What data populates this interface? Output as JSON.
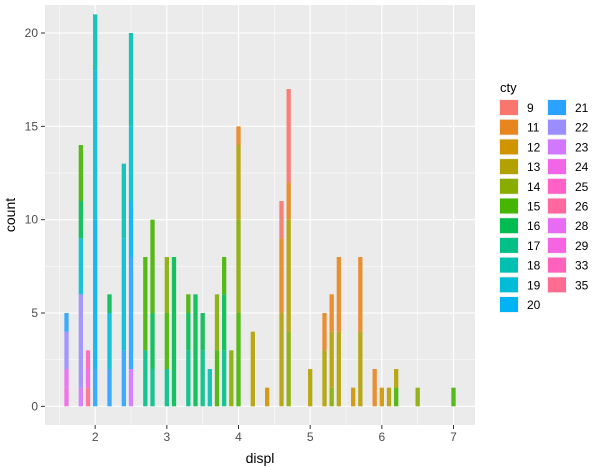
{
  "chart_data": {
    "type": "bar",
    "subtype": "stacked-histogram",
    "xlabel": "displ",
    "ylabel": "count",
    "xlim": [
      1.3,
      7.3
    ],
    "ylim": [
      -1,
      21.5
    ],
    "x_ticks": [
      2,
      3,
      4,
      5,
      6,
      7
    ],
    "y_ticks": [
      0,
      5,
      10,
      15,
      20
    ],
    "bin_width": 0.06,
    "grid": true,
    "legend_position": "right",
    "legend": {
      "title": "cty",
      "entries": [
        {
          "label": "9",
          "color": "#F8766D"
        },
        {
          "label": "11",
          "color": "#E7851E"
        },
        {
          "label": "12",
          "color": "#D09400"
        },
        {
          "label": "13",
          "color": "#B2A100"
        },
        {
          "label": "14",
          "color": "#89AC00"
        },
        {
          "label": "15",
          "color": "#45B500"
        },
        {
          "label": "16",
          "color": "#00BC51"
        },
        {
          "label": "17",
          "color": "#00C087"
        },
        {
          "label": "18",
          "color": "#00C0B2"
        },
        {
          "label": "19",
          "color": "#00BCD6"
        },
        {
          "label": "20",
          "color": "#00B3F2"
        },
        {
          "label": "21",
          "color": "#29A3FF"
        },
        {
          "label": "22",
          "color": "#9C8DFF"
        },
        {
          "label": "23",
          "color": "#D277FF"
        },
        {
          "label": "24",
          "color": "#F166E8"
        },
        {
          "label": "25",
          "color": "#FF61C7"
        },
        {
          "label": "26",
          "color": "#FF689E"
        },
        {
          "label": "28",
          "color": "#E76BF3"
        },
        {
          "label": "29",
          "color": "#F564E3"
        },
        {
          "label": "33",
          "color": "#FF62BC"
        },
        {
          "label": "35",
          "color": "#FF6C91"
        }
      ]
    },
    "bars": [
      {
        "x": 1.6,
        "stack": [
          [
            "24",
            1
          ],
          [
            "28",
            1
          ],
          [
            "22",
            2
          ],
          [
            "21",
            1
          ]
        ]
      },
      {
        "x": 1.8,
        "stack": [
          [
            "23",
            1
          ],
          [
            "22",
            5
          ],
          [
            "19",
            3
          ],
          [
            "16",
            2
          ],
          [
            "15",
            3
          ]
        ]
      },
      {
        "x": 1.9,
        "stack": [
          [
            "35",
            1
          ],
          [
            "29",
            1
          ],
          [
            "33",
            1
          ]
        ]
      },
      {
        "x": 2.0,
        "stack": [
          [
            "21",
            2
          ],
          [
            "20",
            8
          ],
          [
            "19",
            8
          ],
          [
            "18",
            3
          ]
        ]
      },
      {
        "x": 2.2,
        "stack": [
          [
            "21",
            2
          ],
          [
            "19",
            3
          ],
          [
            "16",
            1
          ]
        ]
      },
      {
        "x": 2.4,
        "stack": [
          [
            "21",
            3
          ],
          [
            "19",
            6
          ],
          [
            "18",
            4
          ]
        ]
      },
      {
        "x": 2.5,
        "stack": [
          [
            "23",
            2
          ],
          [
            "21",
            6
          ],
          [
            "20",
            3
          ],
          [
            "19",
            4
          ],
          [
            "18",
            5
          ]
        ]
      },
      {
        "x": 2.7,
        "stack": [
          [
            "17",
            3
          ],
          [
            "15",
            5
          ]
        ]
      },
      {
        "x": 2.8,
        "stack": [
          [
            "17",
            2
          ],
          [
            "16",
            3
          ],
          [
            "15",
            5
          ]
        ]
      },
      {
        "x": 3.0,
        "stack": [
          [
            "17",
            2
          ],
          [
            "15",
            3
          ],
          [
            "14",
            3
          ]
        ]
      },
      {
        "x": 3.1,
        "stack": [
          [
            "16",
            8
          ]
        ]
      },
      {
        "x": 3.3,
        "stack": [
          [
            "17",
            3
          ],
          [
            "16",
            2
          ],
          [
            "15",
            1
          ]
        ]
      },
      {
        "x": 3.4,
        "stack": [
          [
            "16",
            6
          ]
        ]
      },
      {
        "x": 3.5,
        "stack": [
          [
            "17",
            3
          ],
          [
            "16",
            2
          ]
        ]
      },
      {
        "x": 3.6,
        "stack": [
          [
            "18",
            2
          ]
        ]
      },
      {
        "x": 3.7,
        "stack": [
          [
            "15",
            3
          ],
          [
            "14",
            3
          ]
        ]
      },
      {
        "x": 3.8,
        "stack": [
          [
            "17",
            3
          ],
          [
            "16",
            3
          ],
          [
            "15",
            2
          ]
        ]
      },
      {
        "x": 3.9,
        "stack": [
          [
            "14",
            3
          ]
        ]
      },
      {
        "x": 4.0,
        "stack": [
          [
            "15",
            5
          ],
          [
            "14",
            5
          ],
          [
            "13",
            4
          ],
          [
            "11",
            1
          ]
        ]
      },
      {
        "x": 4.2,
        "stack": [
          [
            "13",
            4
          ]
        ]
      },
      {
        "x": 4.4,
        "stack": [
          [
            "12",
            1
          ]
        ]
      },
      {
        "x": 4.6,
        "stack": [
          [
            "13",
            5
          ],
          [
            "11",
            4
          ],
          [
            "9",
            2
          ]
        ]
      },
      {
        "x": 4.7,
        "stack": [
          [
            "14",
            4
          ],
          [
            "13",
            6
          ],
          [
            "11",
            2
          ],
          [
            "9",
            5
          ]
        ]
      },
      {
        "x": 5.0,
        "stack": [
          [
            "13",
            2
          ]
        ]
      },
      {
        "x": 5.2,
        "stack": [
          [
            "13",
            3
          ],
          [
            "11",
            2
          ]
        ]
      },
      {
        "x": 5.3,
        "stack": [
          [
            "14",
            1
          ],
          [
            "13",
            3
          ],
          [
            "11",
            2
          ]
        ]
      },
      {
        "x": 5.4,
        "stack": [
          [
            "13",
            4
          ],
          [
            "11",
            4
          ]
        ]
      },
      {
        "x": 5.6,
        "stack": [
          [
            "12",
            1
          ]
        ]
      },
      {
        "x": 5.7,
        "stack": [
          [
            "13",
            4
          ],
          [
            "11",
            4
          ]
        ]
      },
      {
        "x": 5.9,
        "stack": [
          [
            "11",
            2
          ]
        ]
      },
      {
        "x": 6.0,
        "stack": [
          [
            "12",
            1
          ]
        ]
      },
      {
        "x": 6.1,
        "stack": [
          [
            "13",
            1
          ]
        ]
      },
      {
        "x": 6.2,
        "stack": [
          [
            "15",
            1
          ],
          [
            "13",
            1
          ]
        ]
      },
      {
        "x": 6.5,
        "stack": [
          [
            "14",
            1
          ]
        ]
      },
      {
        "x": 7.0,
        "stack": [
          [
            "15",
            1
          ]
        ]
      }
    ]
  }
}
